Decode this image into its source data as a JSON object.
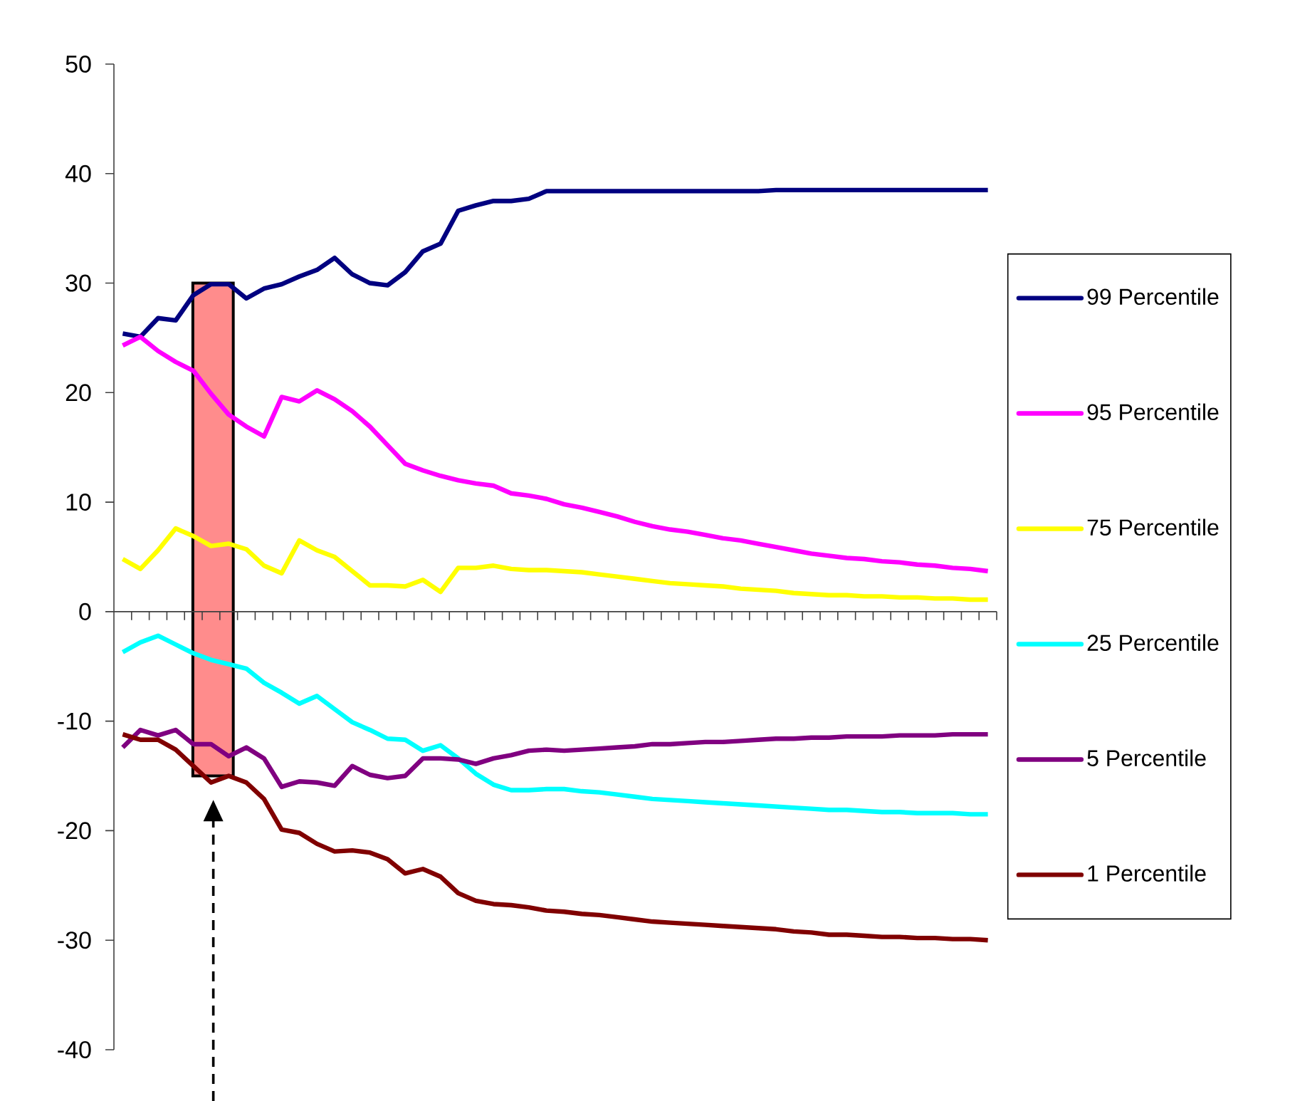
{
  "chart_data": {
    "type": "line",
    "categories": [
      null,
      null,
      null,
      null,
      null,
      null,
      null,
      null,
      null,
      null,
      null,
      null,
      null,
      null,
      null,
      null,
      null,
      null,
      null,
      null,
      null,
      null,
      null,
      null,
      null,
      null,
      null,
      null,
      null,
      null,
      null,
      null,
      null,
      null,
      null,
      null,
      null,
      null,
      null,
      null,
      null,
      null,
      null,
      null,
      null,
      null,
      null,
      null,
      null,
      null
    ],
    "series": [
      {
        "name": "99 Percentile",
        "color": "#000080",
        "values": [
          25.4,
          25.1,
          26.8,
          26.6,
          28.9,
          29.9,
          29.9,
          28.6,
          29.5,
          29.9,
          30.6,
          31.2,
          32.3,
          30.8,
          30.0,
          29.8,
          31.0,
          32.9,
          33.6,
          36.6,
          37.1,
          37.5,
          37.5,
          37.7,
          38.4,
          38.4,
          38.4,
          38.4,
          38.4,
          38.4,
          38.4,
          38.4,
          38.4,
          38.4,
          38.4,
          38.4,
          38.4,
          38.5,
          38.5,
          38.5,
          38.5,
          38.5,
          38.5,
          38.5,
          38.5,
          38.5,
          38.5,
          38.5,
          38.5,
          38.5
        ]
      },
      {
        "name": "95 Percentile",
        "color": "#ff00ff",
        "values": [
          24.3,
          25.1,
          23.8,
          22.8,
          22.0,
          19.9,
          18.0,
          16.9,
          16.0,
          19.6,
          19.2,
          20.2,
          19.4,
          18.3,
          16.9,
          15.2,
          13.5,
          12.9,
          12.4,
          12.0,
          11.7,
          11.5,
          10.8,
          10.6,
          10.3,
          9.8,
          9.5,
          9.1,
          8.7,
          8.2,
          7.8,
          7.5,
          7.3,
          7.0,
          6.7,
          6.5,
          6.2,
          5.9,
          5.6,
          5.3,
          5.1,
          4.9,
          4.8,
          4.6,
          4.5,
          4.3,
          4.2,
          4.0,
          3.9,
          3.7
        ]
      },
      {
        "name": "75 Percentile",
        "color": "#ffff00",
        "values": [
          4.8,
          3.9,
          5.6,
          7.6,
          6.9,
          6.0,
          6.2,
          5.7,
          4.2,
          3.5,
          6.5,
          5.6,
          5.0,
          3.7,
          2.4,
          2.4,
          2.3,
          2.9,
          1.8,
          4.0,
          4.0,
          4.2,
          3.9,
          3.8,
          3.8,
          3.7,
          3.6,
          3.4,
          3.2,
          3.0,
          2.8,
          2.6,
          2.5,
          2.4,
          2.3,
          2.1,
          2.0,
          1.9,
          1.7,
          1.6,
          1.5,
          1.5,
          1.4,
          1.4,
          1.3,
          1.3,
          1.2,
          1.2,
          1.1,
          1.1
        ]
      },
      {
        "name": "25 Percentile",
        "color": "#00ffff",
        "values": [
          -3.7,
          -2.8,
          -2.2,
          -3.0,
          -3.8,
          -4.4,
          -4.8,
          -5.2,
          -6.5,
          -7.4,
          -8.4,
          -7.7,
          -8.9,
          -10.1,
          -10.8,
          -11.6,
          -11.7,
          -12.7,
          -12.2,
          -13.4,
          -14.8,
          -15.8,
          -16.3,
          -16.3,
          -16.2,
          -16.2,
          -16.4,
          -16.5,
          -16.7,
          -16.9,
          -17.1,
          -17.2,
          -17.3,
          -17.4,
          -17.5,
          -17.6,
          -17.7,
          -17.8,
          -17.9,
          -18.0,
          -18.1,
          -18.1,
          -18.2,
          -18.3,
          -18.3,
          -18.4,
          -18.4,
          -18.4,
          -18.5,
          -18.5
        ]
      },
      {
        "name": "5 Percentile",
        "color": "#800080",
        "values": [
          -12.4,
          -10.8,
          -11.3,
          -10.8,
          -12.1,
          -12.1,
          -13.2,
          -12.4,
          -13.4,
          -16.0,
          -15.5,
          -15.6,
          -15.9,
          -14.1,
          -14.9,
          -15.2,
          -15.0,
          -13.4,
          -13.4,
          -13.5,
          -13.9,
          -13.4,
          -13.1,
          -12.7,
          -12.6,
          -12.7,
          -12.6,
          -12.5,
          -12.4,
          -12.3,
          -12.1,
          -12.1,
          -12.0,
          -11.9,
          -11.9,
          -11.8,
          -11.7,
          -11.6,
          -11.6,
          -11.5,
          -11.5,
          -11.4,
          -11.4,
          -11.4,
          -11.3,
          -11.3,
          -11.3,
          -11.2,
          -11.2,
          -11.2
        ]
      },
      {
        "name": "1 Percentile",
        "color": "#800000",
        "values": [
          -11.2,
          -11.7,
          -11.7,
          -12.6,
          -14.1,
          -15.6,
          -15.0,
          -15.6,
          -17.1,
          -19.9,
          -20.2,
          -21.2,
          -21.9,
          -21.8,
          -22.0,
          -22.6,
          -23.9,
          -23.5,
          -24.2,
          -25.7,
          -26.4,
          -26.7,
          -26.8,
          -27.0,
          -27.3,
          -27.4,
          -27.6,
          -27.7,
          -27.9,
          -28.1,
          -28.3,
          -28.4,
          -28.5,
          -28.6,
          -28.7,
          -28.8,
          -28.9,
          -29.0,
          -29.2,
          -29.3,
          -29.5,
          -29.5,
          -29.6,
          -29.7,
          -29.7,
          -29.8,
          -29.8,
          -29.9,
          -29.9,
          -30.0
        ]
      }
    ],
    "ylim": [
      -40,
      50
    ],
    "yticks": [
      -40,
      -30,
      -20,
      -10,
      0,
      10,
      20,
      30,
      40,
      50
    ],
    "legend": "right"
  }
}
